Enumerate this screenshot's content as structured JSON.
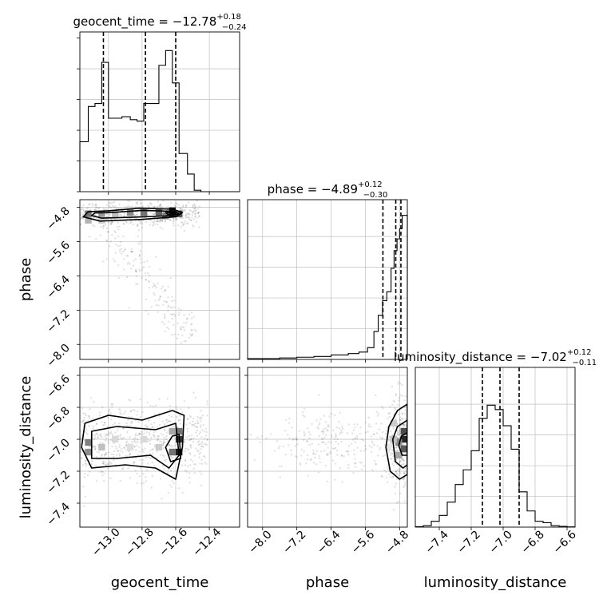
{
  "chart_data": {
    "type": "corner",
    "parameters": [
      {
        "name": "geocent_time",
        "title": {
          "prefix": "geocent_time = ",
          "median": "−12.78",
          "plus": "+0.18",
          "minus": "−0.24"
        },
        "range": [
          -13.17,
          -12.22
        ],
        "ticks": [
          -13.0,
          -12.8,
          -12.6,
          -12.4
        ],
        "tick_labels": [
          "−13.0",
          "−12.8",
          "−12.6",
          "−12.4"
        ],
        "quantiles": [
          -13.03,
          -12.78,
          -12.6
        ],
        "hist": {
          "edges": [
            -13.17,
            -13.12,
            -13.08,
            -13.04,
            -13.0,
            -12.96,
            -12.92,
            -12.87,
            -12.83,
            -12.79,
            -12.75,
            -12.7,
            -12.66,
            -12.62,
            -12.58,
            -12.53,
            -12.49,
            -12.45,
            -12.41,
            -12.22
          ],
          "heights": [
            0.34,
            0.58,
            0.6,
            0.88,
            0.5,
            0.5,
            0.51,
            0.49,
            0.48,
            0.6,
            0.6,
            0.86,
            0.96,
            0.74,
            0.26,
            0.12,
            0.01,
            0.0,
            0.0
          ]
        }
      },
      {
        "name": "phase",
        "title": {
          "prefix": "phase = ",
          "median": "−4.89",
          "plus": "+0.12",
          "minus": "−0.30"
        },
        "range": [
          -8.35,
          -4.62
        ],
        "ticks": [
          -8.0,
          -7.2,
          -6.4,
          -5.6,
          -4.8
        ],
        "tick_labels": [
          "−8.0",
          "−7.2",
          "−6.4",
          "−5.6",
          "−4.8"
        ],
        "quantiles": [
          -5.19,
          -4.89,
          -4.77
        ],
        "hist": {
          "edges": [
            -8.35,
            -7.6,
            -7.2,
            -6.8,
            -6.4,
            -6.0,
            -5.75,
            -5.55,
            -5.4,
            -5.3,
            -5.2,
            -5.1,
            -5.0,
            -4.93,
            -4.86,
            -4.8,
            -4.74,
            -4.62
          ],
          "heights": [
            0.005,
            0.01,
            0.015,
            0.02,
            0.03,
            0.04,
            0.05,
            0.08,
            0.19,
            0.3,
            0.4,
            0.46,
            0.62,
            0.74,
            0.82,
            0.89,
            0.98
          ]
        }
      },
      {
        "name": "luminosity_distance",
        "title": {
          "prefix": "luminosity_distance = ",
          "median": "−7.02",
          "plus": "+0.12",
          "minus": "−0.11"
        },
        "range": [
          -7.55,
          -6.55
        ],
        "ticks": [
          -7.4,
          -7.2,
          -7.0,
          -6.8,
          -6.6
        ],
        "tick_labels": [
          "−7.4",
          "−7.2",
          "−7.0",
          "−6.8",
          "−6.6"
        ],
        "quantiles": [
          -7.13,
          -7.02,
          -6.9
        ],
        "hist": {
          "edges": [
            -7.55,
            -7.5,
            -7.45,
            -7.4,
            -7.35,
            -7.3,
            -7.25,
            -7.2,
            -7.15,
            -7.1,
            -7.05,
            -7.0,
            -6.95,
            -6.9,
            -6.85,
            -6.8,
            -6.75,
            -6.7,
            -6.65,
            -6.6,
            -6.55
          ],
          "heights": [
            0.003,
            0.01,
            0.04,
            0.08,
            0.17,
            0.29,
            0.39,
            0.52,
            0.74,
            0.83,
            0.8,
            0.69,
            0.53,
            0.24,
            0.11,
            0.04,
            0.03,
            0.01,
            0.005,
            0.002
          ]
        }
      }
    ],
    "pairs": [
      {
        "x": "geocent_time",
        "y": "phase",
        "y_ticks": [
          -8.0,
          -7.2,
          -6.4,
          -5.6,
          -4.8
        ],
        "y_tick_labels": [
          "−8.0",
          "−7.2",
          "−6.4",
          "−5.6",
          "−4.8"
        ],
        "cells": [
          [
            -13.12,
            -4.95,
            0.55
          ],
          [
            -13.04,
            -4.95,
            0.4
          ],
          [
            -12.96,
            -4.95,
            0.25
          ],
          [
            -12.87,
            -4.92,
            0.45
          ],
          [
            -12.79,
            -4.92,
            0.55
          ],
          [
            -12.7,
            -4.92,
            0.6
          ],
          [
            -12.62,
            -4.95,
            0.9
          ],
          [
            -12.58,
            -4.95,
            0.7
          ],
          [
            -12.66,
            -5.0,
            0.5
          ],
          [
            -13.12,
            -5.1,
            0.3
          ],
          [
            -13.04,
            -5.1,
            0.2
          ],
          [
            -12.62,
            -4.88,
            0.95
          ]
        ],
        "contours": [
          [
            [
              -13.12,
              -4.9
            ],
            [
              -13.0,
              -4.88
            ],
            [
              -12.82,
              -4.82
            ],
            [
              -12.62,
              -4.84
            ],
            [
              -12.56,
              -4.92
            ],
            [
              -12.6,
              -5.02
            ],
            [
              -12.8,
              -5.08
            ],
            [
              -13.05,
              -5.12
            ],
            [
              -13.15,
              -5.02
            ]
          ],
          [
            [
              -13.08,
              -4.93
            ],
            [
              -12.98,
              -4.92
            ],
            [
              -12.8,
              -4.87
            ],
            [
              -12.64,
              -4.89
            ],
            [
              -12.6,
              -4.95
            ],
            [
              -12.66,
              -5.0
            ],
            [
              -12.85,
              -5.03
            ],
            [
              -13.04,
              -5.05
            ],
            [
              -13.1,
              -4.99
            ]
          ],
          [
            [
              -12.66,
              -4.92
            ],
            [
              -12.6,
              -4.91
            ],
            [
              -12.58,
              -4.96
            ],
            [
              -12.64,
              -4.98
            ]
          ]
        ]
      },
      {
        "x": "geocent_time",
        "y": "luminosity_distance",
        "y_ticks": [
          -7.4,
          -7.2,
          -7.0,
          -6.8,
          -6.6
        ],
        "y_tick_labels": [
          "−7.4",
          "−7.2",
          "−7.0",
          "−6.8",
          "−6.6"
        ],
        "cells": [
          [
            -13.12,
            -7.02,
            0.5
          ],
          [
            -13.12,
            -7.08,
            0.45
          ],
          [
            -13.04,
            -7.05,
            0.25
          ],
          [
            -12.96,
            -7.0,
            0.15
          ],
          [
            -12.87,
            -7.05,
            0.12
          ],
          [
            -12.79,
            -7.0,
            0.15
          ],
          [
            -12.7,
            -7.05,
            0.2
          ],
          [
            -12.62,
            -7.08,
            0.55
          ],
          [
            -12.58,
            -7.0,
            0.8
          ],
          [
            -12.58,
            -7.08,
            0.9
          ],
          [
            -12.58,
            -6.95,
            0.55
          ],
          [
            -12.62,
            -6.95,
            0.35
          ]
        ],
        "contours": [
          [
            [
              -13.14,
              -6.9
            ],
            [
              -13.0,
              -6.85
            ],
            [
              -12.8,
              -6.88
            ],
            [
              -12.62,
              -6.82
            ],
            [
              -12.55,
              -6.85
            ],
            [
              -12.56,
              -7.05
            ],
            [
              -12.6,
              -7.25
            ],
            [
              -12.72,
              -7.18
            ],
            [
              -12.9,
              -7.16
            ],
            [
              -13.1,
              -7.18
            ],
            [
              -13.16,
              -7.05
            ]
          ],
          [
            [
              -13.1,
              -6.95
            ],
            [
              -12.95,
              -6.92
            ],
            [
              -12.72,
              -6.94
            ],
            [
              -12.6,
              -6.9
            ],
            [
              -12.58,
              -7.1
            ],
            [
              -12.64,
              -7.18
            ],
            [
              -12.75,
              -7.1
            ],
            [
              -12.95,
              -7.12
            ],
            [
              -13.1,
              -7.12
            ]
          ],
          [
            [
              -12.62,
              -6.98
            ],
            [
              -12.58,
              -6.97
            ],
            [
              -12.57,
              -7.12
            ],
            [
              -12.63,
              -7.14
            ],
            [
              -12.66,
              -7.05
            ]
          ]
        ]
      },
      {
        "x": "phase",
        "y": "luminosity_distance",
        "y_ticks": [
          -7.4,
          -7.2,
          -7.0,
          -6.8,
          -6.6
        ],
        "y_tick_labels": [
          "−7.4",
          "−7.2",
          "−7.0",
          "−6.8",
          "−6.6"
        ],
        "cells": [
          [
            -4.7,
            -7.0,
            0.85
          ],
          [
            -4.7,
            -6.95,
            0.7
          ],
          [
            -4.7,
            -7.06,
            0.65
          ],
          [
            -4.82,
            -7.02,
            0.45
          ],
          [
            -4.82,
            -7.1,
            0.35
          ],
          [
            -4.94,
            -7.0,
            0.25
          ],
          [
            -4.94,
            -6.9,
            0.2
          ],
          [
            -5.06,
            -7.05,
            0.1
          ]
        ],
        "contours": [
          [
            [
              -4.62,
              -6.78
            ],
            [
              -4.85,
              -6.82
            ],
            [
              -5.05,
              -6.92
            ],
            [
              -5.12,
              -7.05
            ],
            [
              -5.02,
              -7.2
            ],
            [
              -4.8,
              -7.25
            ],
            [
              -4.62,
              -7.22
            ]
          ],
          [
            [
              -4.62,
              -6.88
            ],
            [
              -4.85,
              -6.92
            ],
            [
              -4.96,
              -7.0
            ],
            [
              -4.9,
              -7.14
            ],
            [
              -4.72,
              -7.18
            ],
            [
              -4.62,
              -7.16
            ]
          ],
          [
            [
              -4.62,
              -6.96
            ],
            [
              -4.76,
              -6.98
            ],
            [
              -4.82,
              -7.04
            ],
            [
              -4.74,
              -7.1
            ],
            [
              -4.62,
              -7.1
            ]
          ]
        ]
      }
    ]
  }
}
